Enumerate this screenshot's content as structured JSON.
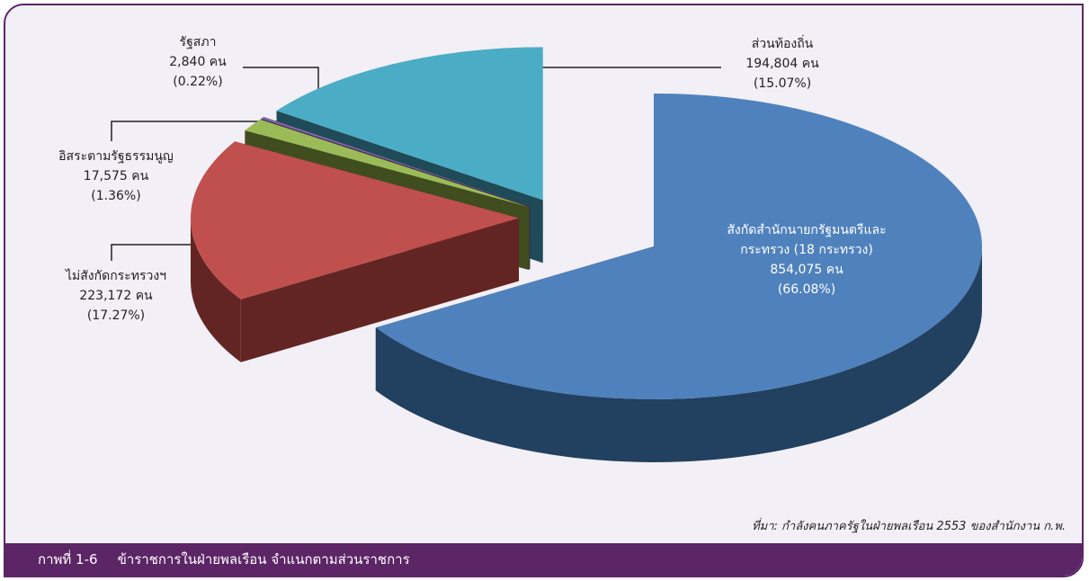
{
  "chart_data": {
    "type": "pie3d",
    "figure_label": "กาพที่ 1-6",
    "title": "ข้าราชการในฝ่ายพลเรือน จำแนกตามส่วนราชการ",
    "source": "ที่มา: กำลังคนภาครัฐในฝ่ายพลเรือน 2553 ของสำนักงาน ก.พ.",
    "categories": [
      "สังกัดสำนักนายกรัฐมนตรีและกระทรวง (18 กระทรวง)",
      "ไม่สังกัดกระทรวงฯ",
      "อิสระตามรัฐธรรมนูญ",
      "รัฐสภา",
      "ส่วนท้องถิ่น"
    ],
    "values": [
      66.08,
      17.27,
      1.36,
      0.22,
      15.07
    ],
    "value_labels": [
      "(66.08%)",
      "(17.27%)",
      "(1.36%)",
      "(0.22%)",
      "(15.07%)"
    ],
    "count_labels": [
      "854,075 คน",
      "223,172 คน",
      "17,575 คน",
      "2,840 คน",
      "194,804 คน"
    ],
    "colors": [
      "#4f81bd",
      "#c0504d",
      "#9bbb59",
      "#8064a2",
      "#4bacc6"
    ],
    "side_colors": [
      "#22405f",
      "#632523",
      "#3f4d1f",
      "#3c2d52",
      "#1f4a57"
    ]
  }
}
